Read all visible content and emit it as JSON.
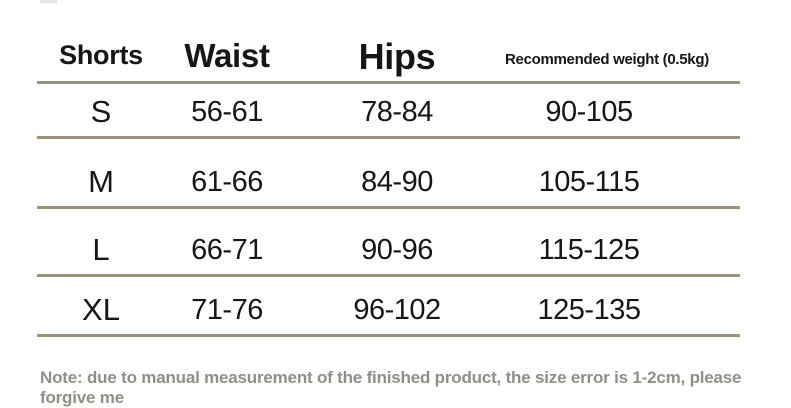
{
  "chart_data": {
    "type": "table",
    "columns": [
      "Shorts",
      "Waist",
      "Hips",
      "Recommended weight (0.5kg)"
    ],
    "rows": [
      [
        "S",
        "56-61",
        "78-84",
        "90-105"
      ],
      [
        "M",
        "61-66",
        "84-90",
        "105-115"
      ],
      [
        "L",
        "66-71",
        "90-96",
        "115-125"
      ],
      [
        "XL",
        "71-76",
        "96-102",
        "125-135"
      ]
    ],
    "note": "Note: due to manual measurement of the finished product, the size error is 1-2cm, please forgive me",
    "layout_hints": {
      "grid": "horizontal rules only, under header and under each row",
      "units": "cm for waist/hips, 0.5kg units for weight"
    }
  },
  "colors": {
    "rule_line": "#9a9379",
    "text": "#161616",
    "note_text": "#8f8f88",
    "background": "#ffffff"
  }
}
